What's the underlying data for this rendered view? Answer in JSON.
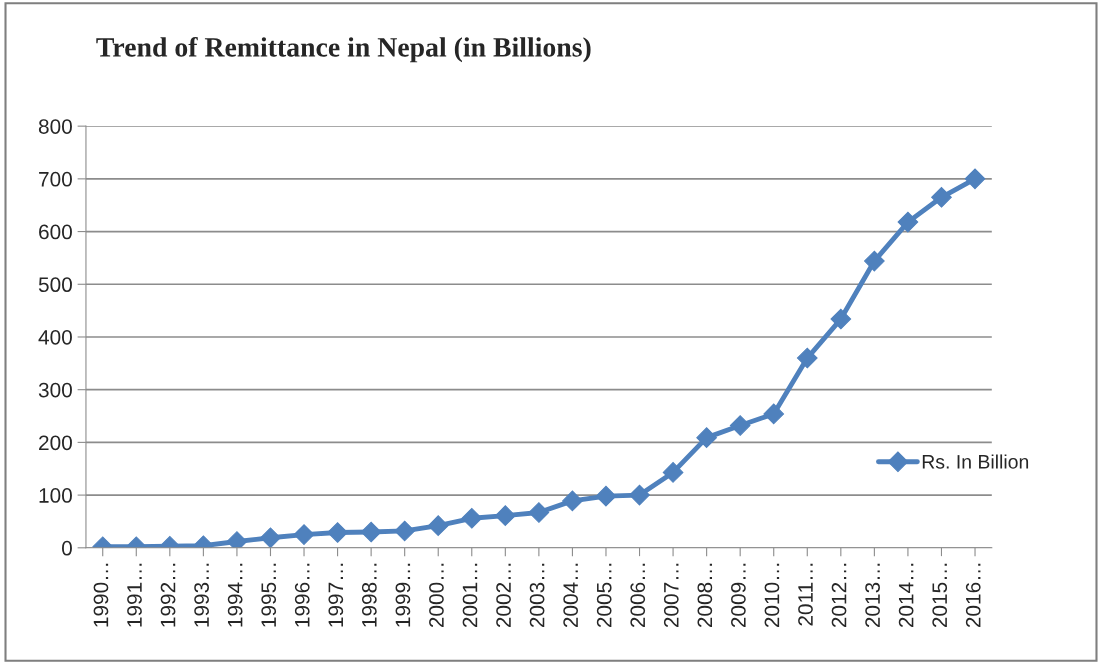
{
  "chart_data": {
    "type": "line",
    "title": "Trend of Remittance in Nepal (in Billions)",
    "categories": [
      "1990…",
      "1991…",
      "1992…",
      "1993…",
      "1994…",
      "1995…",
      "1996…",
      "1997…",
      "1998…",
      "1999…",
      "2000…",
      "2001…",
      "2002…",
      "2003…",
      "2004…",
      "2005…",
      "2006…",
      "2007…",
      "2008…",
      "2009…",
      "2010…",
      "2011…",
      "2012…",
      "2013…",
      "2014…",
      "2015…",
      "2016…"
    ],
    "series": [
      {
        "name": "Rs. In Billion",
        "color": "#4f81bd",
        "values": [
          2,
          2,
          3,
          4,
          12,
          19,
          25,
          29,
          30,
          32,
          42,
          56,
          61,
          67,
          89,
          98,
          100,
          143,
          209,
          232,
          254,
          360,
          434,
          544,
          618,
          665,
          700
        ]
      }
    ],
    "ylim": [
      0,
      800
    ],
    "yticks": [
      0,
      100,
      200,
      300,
      400,
      500,
      600,
      700,
      800
    ],
    "grid": "y",
    "legend": "right",
    "marker": "diamond",
    "line_style": "solid"
  }
}
